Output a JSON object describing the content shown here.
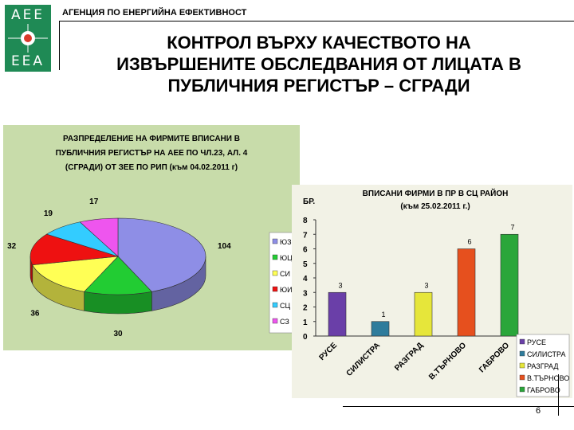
{
  "header": {
    "logo_top": "AEE",
    "logo_bottom": "EEA",
    "agency": "АГЕНЦИЯ ПО ЕНЕРГИЙНА ЕФЕКТИВНОСТ",
    "title_lines": [
      "КОНТРОЛ ВЪРХУ КАЧЕСТВОТО НА",
      "ИЗВЪРШЕНИТЕ ОБСЛЕДВАНИЯ ОТ ЛИЦАТА В",
      "ПУБЛИЧНИЯ РЕГИСТЪР – СГРАДИ"
    ]
  },
  "page_number": "6",
  "colors": {
    "logo": "#1f8a55",
    "pie_background": "#c8dcaa",
    "bar_background": "#f2f2e6"
  },
  "chart_data": [
    {
      "type": "pie",
      "title_lines": [
        "РАЗПРЕДЕЛЕНИЕ НА ФИРМИТЕ ВПИСАНИ В",
        "ПУБЛИЧНИЯ РЕГИСТЪР НА АЕЕ ПО ЧЛ.23, АЛ. 4",
        "(СГРАДИ) ОТ ЗЕЕ ПО РИП (към 04.02.2011 г)"
      ],
      "legend_position": "right",
      "slices": [
        {
          "label": "ЮЗ",
          "value": 104,
          "color": "#8e8ee6"
        },
        {
          "label": "ЮЦ",
          "value": 30,
          "color": "#22cc33"
        },
        {
          "label": "СИ",
          "value": 36,
          "color": "#ffff55"
        },
        {
          "label": "ЮИ",
          "value": 32,
          "color": "#ee1111"
        },
        {
          "label": "СЦ",
          "value": 19,
          "color": "#33ccff"
        },
        {
          "label": "СЗ",
          "value": 17,
          "color": "#ee55ee"
        }
      ]
    },
    {
      "type": "bar",
      "title_lines": [
        "ВПИСАНИ ФИРМИ В ПР В СЦ РАЙОН",
        "(към 25.02.2011 г.)"
      ],
      "ylabel": "БР.",
      "ylim": [
        0,
        8
      ],
      "yticks": [
        0,
        1,
        2,
        3,
        4,
        5,
        6,
        7,
        8
      ],
      "grid": false,
      "legend_position": "bottom-right",
      "categories": [
        "РУСЕ",
        "СИЛИСТРА",
        "РАЗГРАД",
        "В.ТЪРНОВО",
        "ГАБРОВО"
      ],
      "values": [
        3,
        1,
        3,
        6,
        7
      ],
      "colors": [
        "#6a3fa8",
        "#2f7c9c",
        "#e6e63a",
        "#e6501e",
        "#2aa63a"
      ]
    }
  ]
}
